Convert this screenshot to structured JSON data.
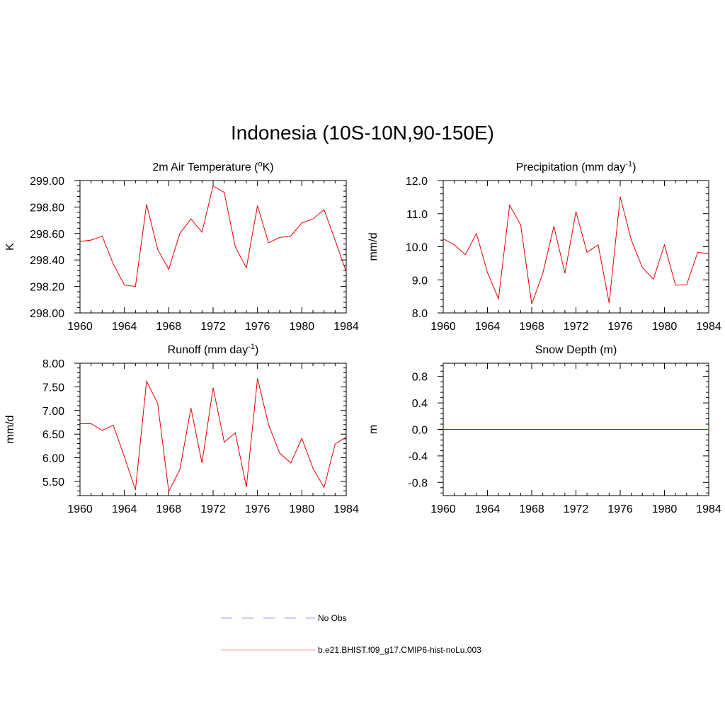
{
  "title": "Indonesia (10S-10N,90-150E)",
  "colors": {
    "model": "#e60000",
    "obs": "#9999ee",
    "axis": "#000000"
  },
  "legend": [
    {
      "label": "No Obs",
      "style": "dashed",
      "color": "#9999ee"
    },
    {
      "label": "b.e21.BHIST.f09_g17.CMIP6-hist-noLu.003",
      "style": "solid",
      "color": "#ff9999"
    }
  ],
  "chart_data": [
    {
      "type": "line",
      "title_pre": "2m Air Temperature (",
      "title_sup": "o",
      "title_post": "K)",
      "ylabel": "K",
      "xlim": [
        1960,
        1984
      ],
      "ylim": [
        298.0,
        299.0
      ],
      "xticks": [
        1960,
        1964,
        1968,
        1972,
        1976,
        1980,
        1984
      ],
      "yticks": [
        298.0,
        298.2,
        298.4,
        298.6,
        298.8,
        299.0
      ],
      "ytick_labels": [
        "298.00",
        "298.20",
        "298.40",
        "298.60",
        "298.80",
        "299.00"
      ],
      "x": [
        1960,
        1961,
        1962,
        1963,
        1964,
        1965,
        1966,
        1967,
        1968,
        1969,
        1970,
        1971,
        1972,
        1973,
        1974,
        1975,
        1976,
        1977,
        1978,
        1979,
        1980,
        1981,
        1982,
        1983,
        1984
      ],
      "values": [
        298.54,
        298.55,
        298.58,
        298.37,
        298.21,
        298.2,
        298.82,
        298.48,
        298.33,
        298.6,
        298.71,
        298.61,
        298.96,
        298.91,
        298.5,
        298.34,
        298.81,
        298.53,
        298.57,
        298.58,
        298.68,
        298.71,
        298.78,
        298.55,
        298.31
      ]
    },
    {
      "type": "line",
      "title_pre": "Precipitation (mm day",
      "title_sup": "-1",
      "title_post": ")",
      "ylabel": "mm/d",
      "xlim": [
        1960,
        1984
      ],
      "ylim": [
        8.0,
        12.0
      ],
      "xticks": [
        1960,
        1964,
        1968,
        1972,
        1976,
        1980,
        1984
      ],
      "yticks": [
        8.0,
        9.0,
        10.0,
        11.0,
        12.0
      ],
      "ytick_labels": [
        "8.0",
        "9.0",
        "10.0",
        "11.0",
        "12.0"
      ],
      "x": [
        1960,
        1961,
        1962,
        1963,
        1964,
        1965,
        1966,
        1967,
        1968,
        1969,
        1970,
        1971,
        1972,
        1973,
        1974,
        1975,
        1976,
        1977,
        1978,
        1979,
        1980,
        1981,
        1982,
        1983,
        1984
      ],
      "values": [
        10.24,
        10.06,
        9.76,
        10.4,
        9.22,
        8.43,
        11.26,
        10.66,
        8.27,
        9.19,
        10.62,
        9.2,
        11.06,
        9.83,
        10.06,
        8.3,
        11.51,
        10.21,
        9.37,
        9.02,
        10.06,
        8.84,
        8.85,
        9.83,
        9.79
      ]
    },
    {
      "type": "line",
      "title_pre": "Runoff (mm day",
      "title_sup": "-1",
      "title_post": ")",
      "ylabel": "mm/d",
      "xlim": [
        1960,
        1984
      ],
      "ylim": [
        5.2,
        8.0
      ],
      "xticks": [
        1960,
        1964,
        1968,
        1972,
        1976,
        1980,
        1984
      ],
      "yticks": [
        5.5,
        6.0,
        6.5,
        7.0,
        7.5,
        8.0
      ],
      "ytick_labels": [
        "5.50",
        "6.00",
        "6.50",
        "7.00",
        "7.50",
        "8.00"
      ],
      "x": [
        1960,
        1961,
        1962,
        1963,
        1964,
        1965,
        1966,
        1967,
        1968,
        1969,
        1970,
        1971,
        1972,
        1973,
        1974,
        1975,
        1976,
        1977,
        1978,
        1979,
        1980,
        1981,
        1982,
        1983,
        1984
      ],
      "values": [
        6.72,
        6.72,
        6.58,
        6.69,
        6.02,
        5.32,
        7.62,
        7.15,
        5.29,
        5.75,
        7.05,
        5.89,
        7.48,
        6.33,
        6.53,
        5.38,
        7.68,
        6.7,
        6.1,
        5.89,
        6.41,
        5.78,
        5.37,
        6.29,
        6.44
      ]
    },
    {
      "type": "line",
      "title_pre": "Snow Depth (m)",
      "title_sup": "",
      "title_post": "",
      "ylabel": "m",
      "xlim": [
        1960,
        1984
      ],
      "ylim": [
        -1.0,
        1.0
      ],
      "xticks": [
        1960,
        1964,
        1968,
        1972,
        1976,
        1980,
        1984
      ],
      "yticks": [
        -0.8,
        -0.4,
        0.0,
        0.4,
        0.8
      ],
      "ytick_labels": [
        "-0.8",
        "-0.4",
        "0.0",
        "0.4",
        "0.8"
      ],
      "x": [
        1960,
        1984
      ],
      "values": [
        0.0,
        0.0
      ]
    }
  ]
}
